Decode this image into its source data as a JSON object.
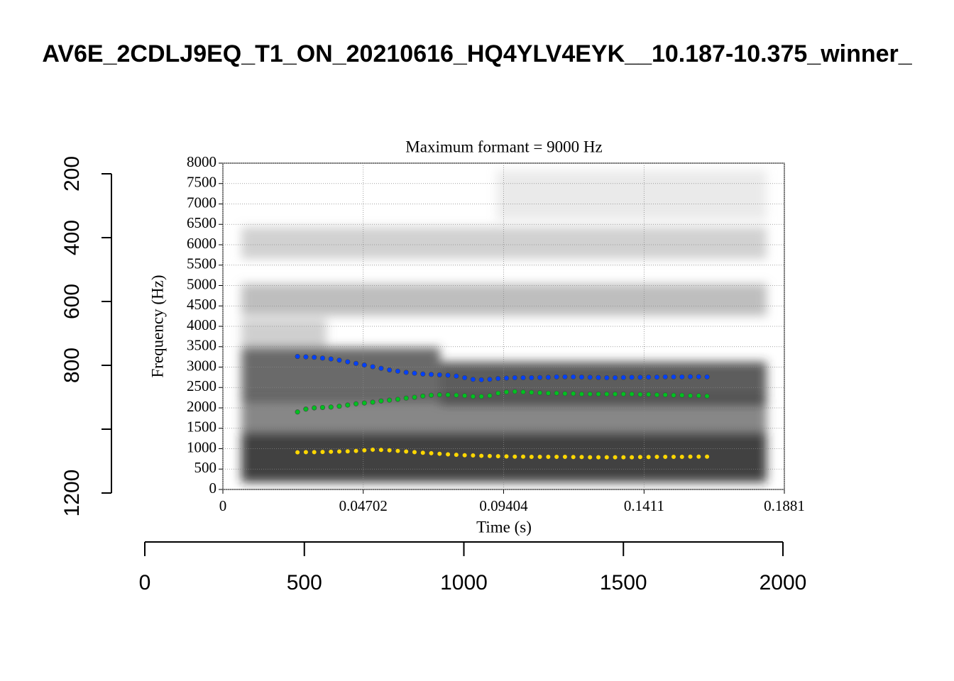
{
  "chart_data": [
    {
      "type": "scatter",
      "title": "Maximum formant = 9000 Hz",
      "xlabel": "Time (s)",
      "ylabel": "Frequency (Hz)",
      "xlim": [
        0,
        0.1881
      ],
      "xticks": [
        0,
        0.04702,
        0.09404,
        0.1411,
        0.1881
      ],
      "ylim": [
        0,
        8000
      ],
      "yticks": [
        0,
        500,
        1000,
        1500,
        2000,
        2500,
        3000,
        3500,
        4000,
        4500,
        5000,
        5500,
        6000,
        6500,
        7000,
        7500,
        8000
      ],
      "grid": true,
      "x": [
        0.025,
        0.0278,
        0.0306,
        0.0334,
        0.0362,
        0.039,
        0.0418,
        0.0446,
        0.0474,
        0.0502,
        0.053,
        0.0558,
        0.0586,
        0.0614,
        0.0642,
        0.067,
        0.0698,
        0.0726,
        0.0754,
        0.0782,
        0.081,
        0.0838,
        0.0866,
        0.0894,
        0.0922,
        0.095,
        0.0978,
        0.1006,
        0.1034,
        0.1062,
        0.109,
        0.1118,
        0.1146,
        0.1174,
        0.1202,
        0.123,
        0.1258,
        0.1286,
        0.1314,
        0.1342,
        0.137,
        0.1398,
        0.1426,
        0.1454,
        0.1482,
        0.151,
        0.1538,
        0.1566,
        0.1594,
        0.1622
      ],
      "series": [
        {
          "color": "#ffd700",
          "values": [
            910,
            915,
            915,
            920,
            925,
            930,
            935,
            945,
            960,
            975,
            970,
            960,
            945,
            930,
            915,
            900,
            890,
            875,
            860,
            850,
            840,
            835,
            825,
            820,
            815,
            810,
            805,
            805,
            800,
            800,
            800,
            800,
            800,
            795,
            795,
            790,
            790,
            790,
            790,
            790,
            790,
            795,
            795,
            800,
            800,
            800,
            800,
            805,
            805,
            805
          ]
        },
        {
          "color": "#00c020",
          "values": [
            1900,
            1970,
            2000,
            2010,
            2020,
            2040,
            2070,
            2100,
            2120,
            2140,
            2170,
            2190,
            2210,
            2240,
            2260,
            2290,
            2310,
            2320,
            2320,
            2310,
            2300,
            2280,
            2280,
            2300,
            2360,
            2390,
            2400,
            2390,
            2380,
            2370,
            2360,
            2360,
            2350,
            2350,
            2340,
            2340,
            2340,
            2340,
            2340,
            2340,
            2340,
            2330,
            2330,
            2320,
            2320,
            2310,
            2310,
            2300,
            2300,
            2290
          ]
        },
        {
          "color": "#0040ff",
          "values": [
            3260,
            3250,
            3240,
            3220,
            3200,
            3170,
            3130,
            3090,
            3050,
            3010,
            2970,
            2930,
            2900,
            2870,
            2850,
            2830,
            2820,
            2810,
            2800,
            2780,
            2740,
            2700,
            2690,
            2700,
            2720,
            2730,
            2740,
            2740,
            2740,
            2745,
            2750,
            2760,
            2760,
            2760,
            2755,
            2750,
            2745,
            2740,
            2740,
            2745,
            2750,
            2750,
            2755,
            2755,
            2760,
            2760,
            2760,
            2765,
            2765,
            2760
          ]
        }
      ]
    },
    {
      "type": "axes",
      "title": "AV6E_2CDLJ9EQ_T1_ON_20210616_HQ4YLV4EYK__10.187-10.375_winner_",
      "xlim": [
        0,
        2000
      ],
      "xticks": [
        0,
        500,
        1000,
        1500,
        2000
      ],
      "ylim": [
        1200,
        200
      ],
      "yticks": [
        200,
        400,
        600,
        800,
        {
          "value": 1000,
          "label": null
        },
        1200
      ]
    }
  ]
}
